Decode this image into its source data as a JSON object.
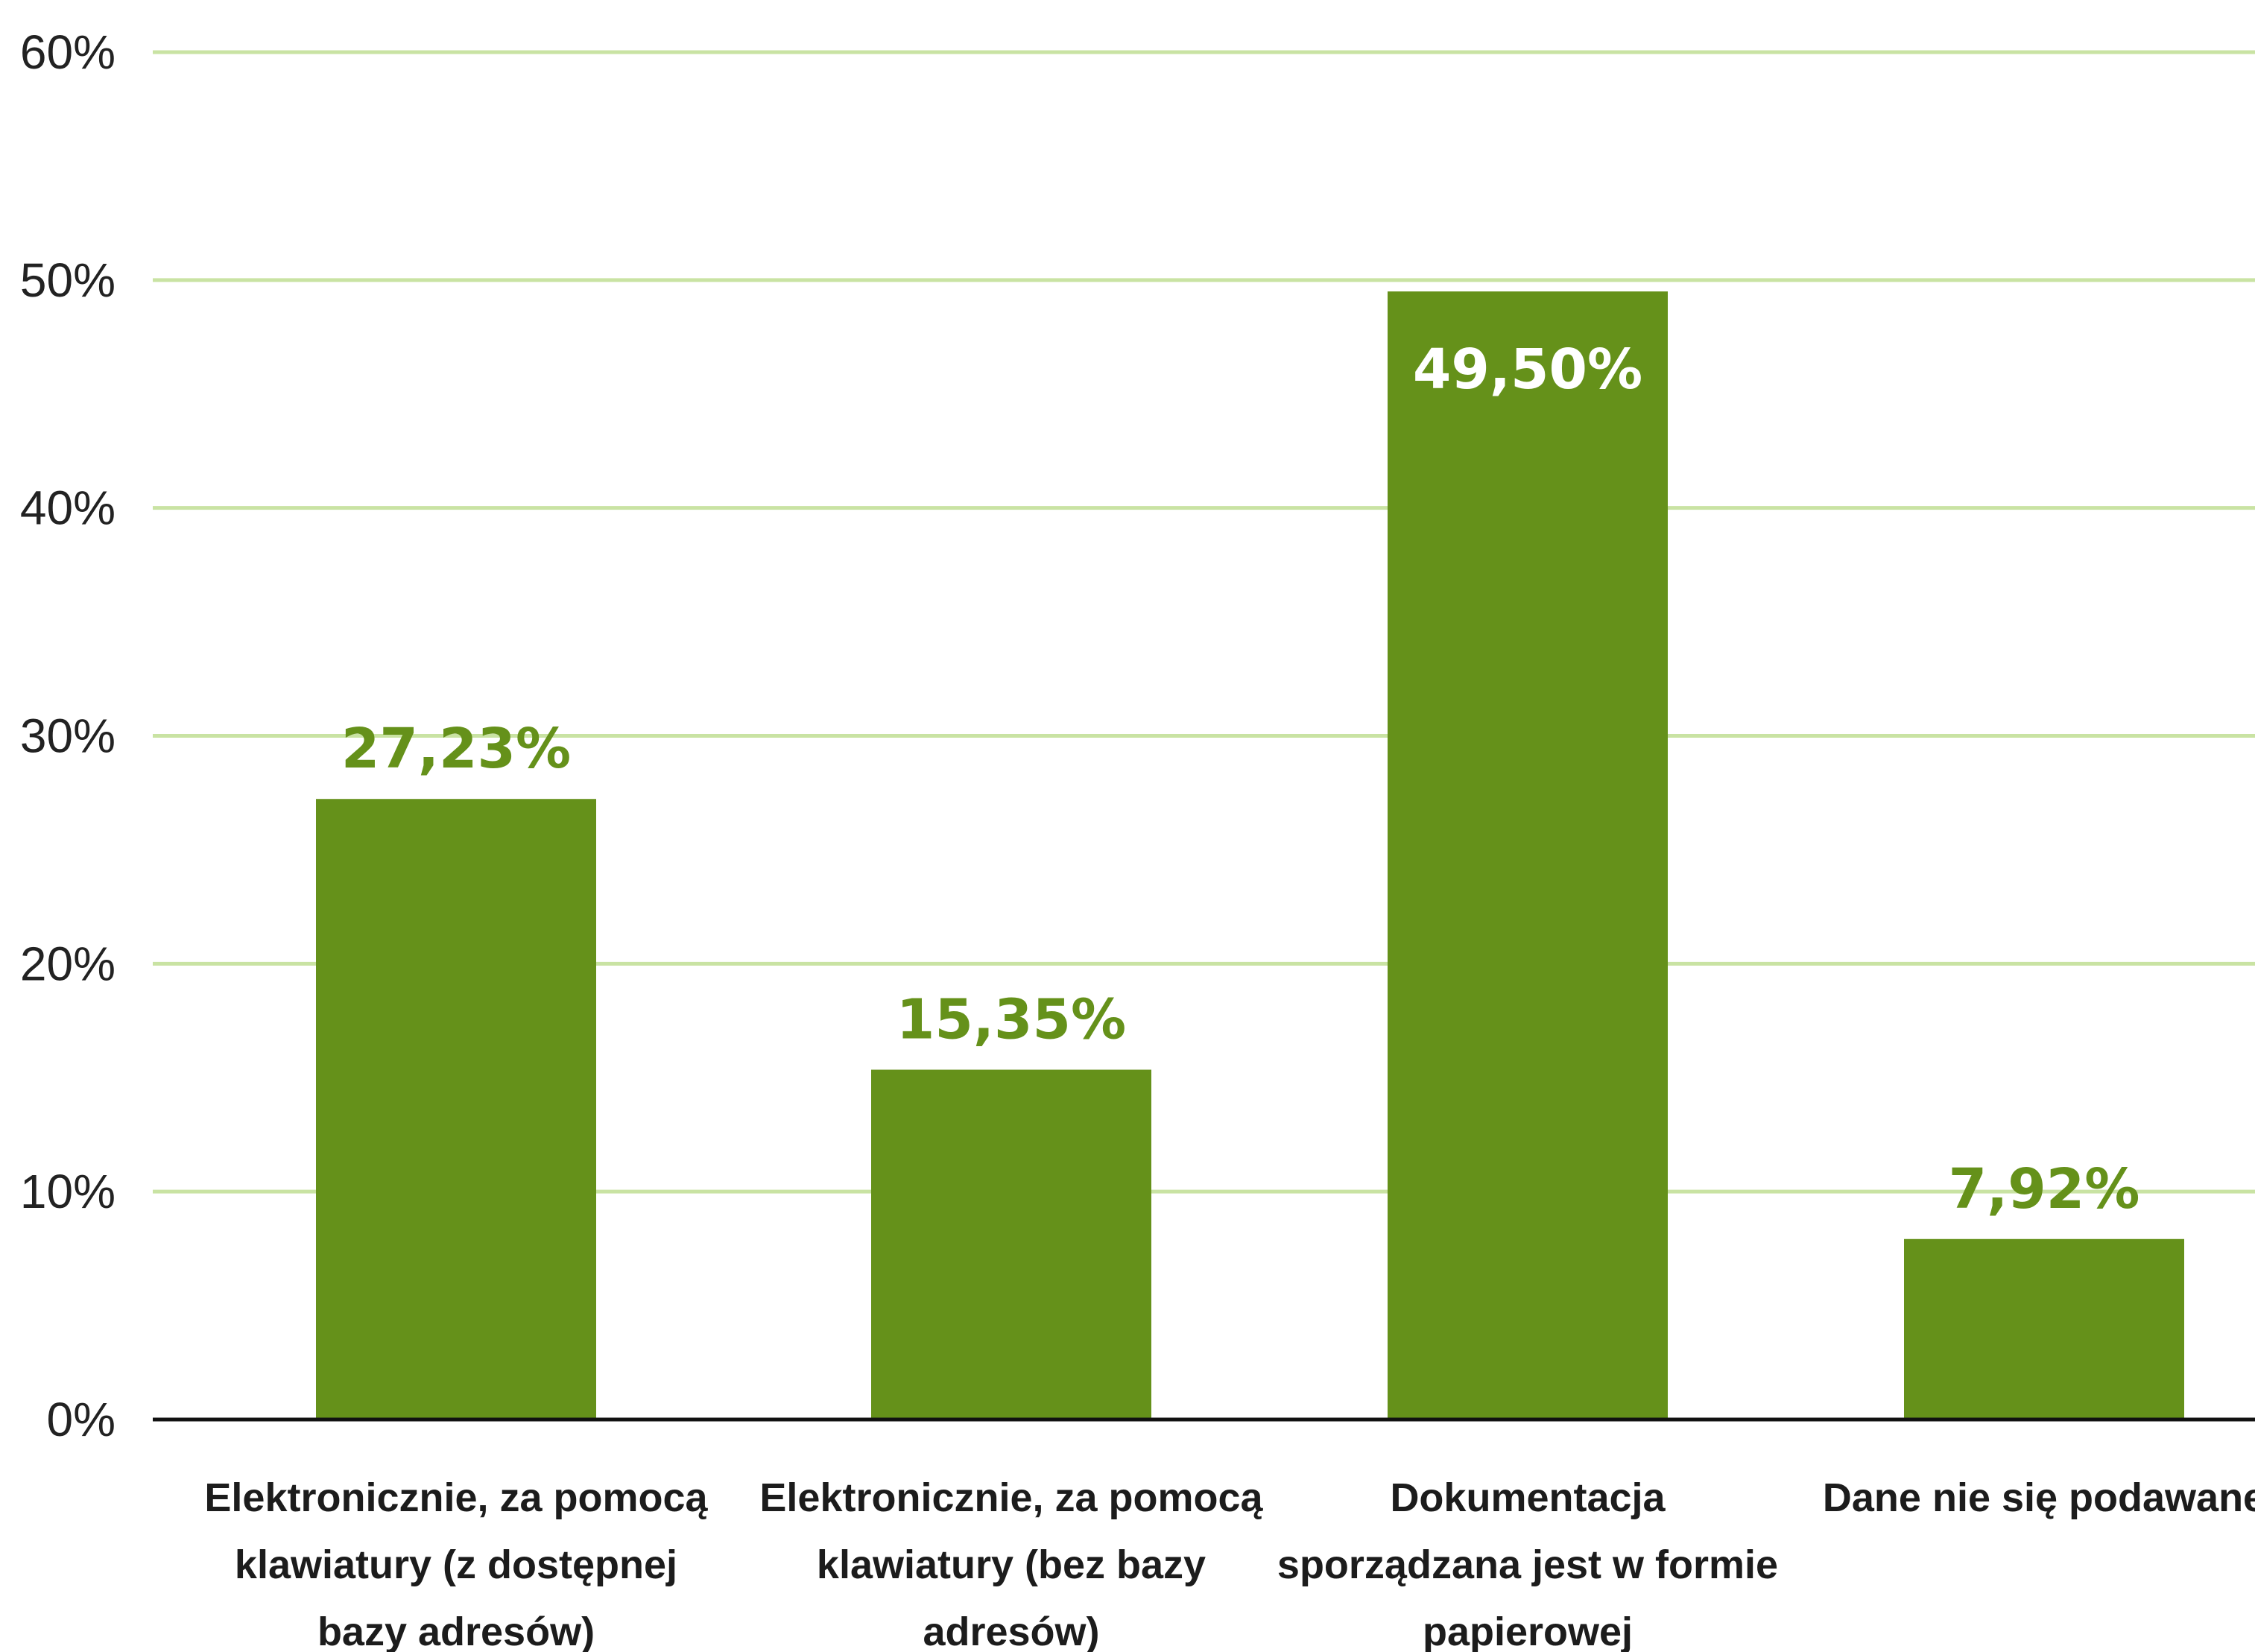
{
  "chart_data": {
    "type": "bar",
    "categories": [
      "Elektronicznie, za pomocą klawiatury (z dostępnej bazy adresów)",
      "Elektronicznie, za pomocą klawiatury (bez bazy adresów)",
      "Dokumentacja sporządzana jest w formie papierowej",
      "Dane nie się podawane"
    ],
    "category_lines": [
      [
        "Elektronicznie, za pomocą",
        "klawiatury (z dostępnej",
        "bazy adresów)"
      ],
      [
        "Elektronicznie, za pomocą",
        "klawiatury (bez bazy",
        "adresów)"
      ],
      [
        "Dokumentacja",
        "sporządzana jest w formie",
        "papierowej"
      ],
      [
        "Dane nie się podawane"
      ]
    ],
    "values": [
      27.23,
      15.35,
      49.5,
      7.92
    ],
    "value_labels": [
      "27,23%",
      "15,35%",
      "49,50%",
      "7,92%"
    ],
    "label_inside": [
      false,
      false,
      true,
      false
    ],
    "ylim": [
      0,
      60
    ],
    "yticks": [
      0,
      10,
      20,
      30,
      40,
      50,
      60
    ],
    "ytick_labels": [
      "0%",
      "10%",
      "20%",
      "30%",
      "40%",
      "50%",
      "60%"
    ],
    "grid": true,
    "legend": "none",
    "colors": {
      "bar": "#65911a",
      "grid": "#c9e3a3",
      "value_label": "#65911a",
      "axis": "#111111"
    }
  }
}
